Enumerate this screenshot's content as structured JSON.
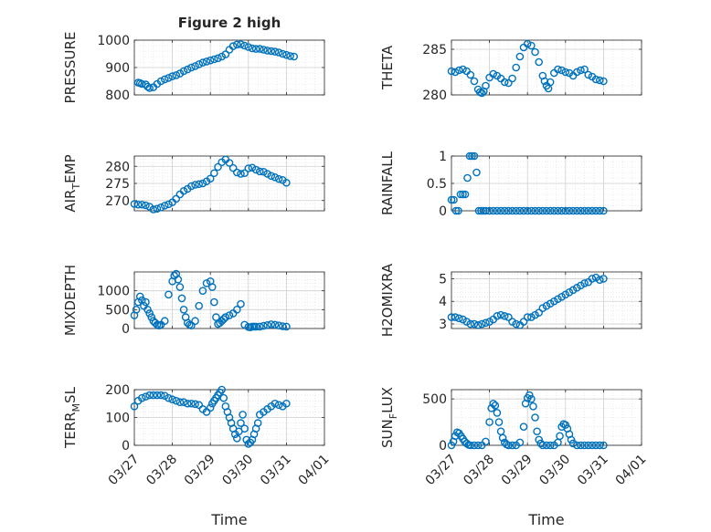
{
  "figure": {
    "title": "Figure 2 high",
    "marker_color": "#0072BD",
    "background": "#ffffff",
    "grid_color": "#dcdcdc",
    "axis_color": "#262626"
  },
  "chart_data": [
    {
      "type": "scatter",
      "ylabel": "PRESSURE",
      "xlabel": "",
      "ylim": [
        800,
        1000
      ],
      "yticks": [
        "800",
        "900",
        "1000"
      ],
      "xticklabels": [],
      "grid": true,
      "minor_grid": true,
      "x": [
        0.1,
        0.15,
        0.2,
        0.3,
        0.35,
        0.4,
        0.5,
        0.6,
        0.7,
        0.8,
        0.9,
        1.0,
        1.1,
        1.2,
        1.3,
        1.4,
        1.5,
        1.6,
        1.7,
        1.8,
        1.9,
        2.0,
        2.1,
        2.2,
        2.3,
        2.4,
        2.5,
        2.6,
        2.7,
        2.8,
        2.9,
        3.0,
        3.1,
        3.2,
        3.3,
        3.4,
        3.5,
        3.6,
        3.7,
        3.8,
        3.9,
        4.0,
        4.1,
        4.2
      ],
      "y": [
        845,
        843,
        840,
        838,
        830,
        825,
        828,
        840,
        850,
        857,
        862,
        868,
        872,
        878,
        887,
        893,
        900,
        905,
        912,
        918,
        922,
        926,
        930,
        934,
        940,
        948,
        965,
        978,
        984,
        985,
        980,
        975,
        970,
        968,
        968,
        965,
        962,
        960,
        958,
        955,
        950,
        946,
        942,
        940
      ]
    },
    {
      "type": "scatter",
      "ylabel": "THETA",
      "xlabel": "",
      "ylim": [
        280,
        286
      ],
      "yticks": [
        "280",
        "285"
      ],
      "xticklabels": [],
      "grid": true,
      "minor_grid": true,
      "x": [
        0.0,
        0.1,
        0.2,
        0.3,
        0.4,
        0.5,
        0.6,
        0.7,
        0.75,
        0.8,
        0.85,
        0.9,
        1.0,
        1.1,
        1.2,
        1.3,
        1.4,
        1.5,
        1.6,
        1.7,
        1.8,
        1.9,
        2.0,
        2.1,
        2.2,
        2.3,
        2.4,
        2.45,
        2.5,
        2.55,
        2.6,
        2.7,
        2.8,
        2.9,
        3.0,
        3.1,
        3.2,
        3.3,
        3.4,
        3.5,
        3.6,
        3.7,
        3.8,
        3.9,
        4.0
      ],
      "y": [
        282.6,
        282.5,
        282.7,
        282.8,
        282.6,
        282.2,
        281.5,
        280.6,
        280.3,
        280.2,
        280.4,
        281.0,
        281.9,
        282.3,
        282.1,
        281.8,
        281.4,
        281.3,
        281.8,
        283.0,
        284.2,
        285.2,
        285.6,
        285.4,
        284.7,
        283.6,
        282.1,
        281.5,
        281.0,
        280.7,
        281.4,
        282.4,
        282.8,
        282.7,
        282.5,
        282.4,
        282.1,
        282.5,
        282.7,
        282.8,
        282.2,
        282.0,
        281.7,
        281.6,
        281.5
      ]
    },
    {
      "type": "scatter",
      "ylabel": "AIR_TEMP",
      "xlabel": "",
      "ylim": [
        267,
        283
      ],
      "yticks": [
        "270",
        "275",
        "280"
      ],
      "xticklabels": [],
      "grid": true,
      "minor_grid": true,
      "x": [
        0.0,
        0.1,
        0.2,
        0.3,
        0.4,
        0.5,
        0.6,
        0.7,
        0.8,
        0.9,
        1.0,
        1.1,
        1.2,
        1.3,
        1.4,
        1.5,
        1.6,
        1.7,
        1.8,
        1.9,
        2.0,
        2.1,
        2.2,
        2.3,
        2.4,
        2.5,
        2.6,
        2.7,
        2.8,
        2.9,
        3.0,
        3.1,
        3.2,
        3.3,
        3.4,
        3.5,
        3.6,
        3.7,
        3.8,
        3.9,
        4.0
      ],
      "y": [
        269.0,
        268.8,
        268.8,
        268.6,
        268.2,
        267.4,
        267.6,
        268.0,
        268.5,
        268.9,
        269.5,
        270.5,
        271.8,
        272.8,
        273.4,
        274.2,
        274.6,
        274.8,
        275.0,
        275.6,
        276.4,
        278.0,
        279.8,
        281.2,
        282.0,
        281.0,
        279.5,
        278.2,
        277.8,
        278.0,
        279.4,
        279.6,
        279.0,
        278.5,
        278.4,
        277.8,
        277.2,
        276.8,
        276.3,
        276.0,
        275.2
      ]
    },
    {
      "type": "scatter",
      "ylabel": "RAINFALL",
      "xlabel": "",
      "ylim": [
        0,
        1
      ],
      "yticks": [
        "0",
        "0.5",
        "1"
      ],
      "xticklabels": [],
      "grid": true,
      "minor_grid": true,
      "x": [
        0.0,
        0.06,
        0.12,
        0.18,
        0.24,
        0.3,
        0.36,
        0.42,
        0.48,
        0.54,
        0.6,
        0.66,
        0.72,
        0.78,
        0.84,
        0.9,
        1.0,
        1.1,
        1.2,
        1.3,
        1.4,
        1.5,
        1.6,
        1.7,
        1.8,
        1.9,
        2.0,
        2.1,
        2.2,
        2.3,
        2.4,
        2.5,
        2.6,
        2.7,
        2.8,
        2.9,
        3.0,
        3.1,
        3.2,
        3.3,
        3.4,
        3.5,
        3.6,
        3.7,
        3.8,
        3.9,
        4.0
      ],
      "y": [
        0.2,
        0.2,
        0.0,
        0.0,
        0.3,
        0.3,
        0.3,
        0.6,
        1.0,
        1.0,
        1.0,
        0.7,
        0.0,
        0.0,
        0.0,
        0.0,
        0.0,
        0.0,
        0.0,
        0.0,
        0.0,
        0.0,
        0.0,
        0.0,
        0.0,
        0.0,
        0.0,
        0.0,
        0.0,
        0.0,
        0.0,
        0.0,
        0.0,
        0.0,
        0.0,
        0.0,
        0.0,
        0.0,
        0.0,
        0.0,
        0.0,
        0.0,
        0.0,
        0.0,
        0.0,
        0.0,
        0.0
      ]
    },
    {
      "type": "scatter",
      "ylabel": "MIXDEPTH",
      "xlabel": "",
      "ylim": [
        0,
        1500
      ],
      "yticks": [
        "0",
        "500",
        "1000"
      ],
      "xticklabels": [],
      "grid": true,
      "minor_grid": true,
      "x": [
        0.0,
        0.05,
        0.1,
        0.15,
        0.2,
        0.25,
        0.3,
        0.35,
        0.4,
        0.45,
        0.5,
        0.55,
        0.6,
        0.65,
        0.7,
        0.8,
        0.9,
        1.0,
        1.05,
        1.1,
        1.15,
        1.2,
        1.25,
        1.3,
        1.35,
        1.4,
        1.45,
        1.5,
        1.6,
        1.7,
        1.8,
        1.9,
        2.0,
        2.05,
        2.1,
        2.15,
        2.2,
        2.25,
        2.3,
        2.35,
        2.4,
        2.5,
        2.6,
        2.7,
        2.8,
        2.9,
        3.0,
        3.05,
        3.1,
        3.15,
        3.2,
        3.3,
        3.4,
        3.5,
        3.6,
        3.7,
        3.8,
        3.9,
        4.0
      ],
      "y": [
        350,
        500,
        700,
        850,
        750,
        600,
        700,
        500,
        400,
        300,
        200,
        150,
        100,
        80,
        100,
        200,
        900,
        1250,
        1400,
        1450,
        1300,
        1100,
        800,
        500,
        300,
        150,
        100,
        80,
        200,
        600,
        1000,
        1200,
        1250,
        1100,
        700,
        300,
        120,
        150,
        200,
        250,
        300,
        350,
        400,
        500,
        650,
        100,
        40,
        30,
        50,
        50,
        50,
        50,
        70,
        90,
        110,
        100,
        80,
        60,
        50
      ]
    },
    {
      "type": "scatter",
      "ylabel": "H2OMIXRA",
      "xlabel": "",
      "ylim": [
        2.8,
        5.3
      ],
      "yticks": [
        "3",
        "4",
        "5"
      ],
      "xticklabels": [],
      "grid": true,
      "minor_grid": true,
      "x": [
        0.0,
        0.1,
        0.2,
        0.3,
        0.4,
        0.5,
        0.6,
        0.7,
        0.8,
        0.9,
        1.0,
        1.1,
        1.2,
        1.3,
        1.4,
        1.5,
        1.6,
        1.7,
        1.8,
        1.9,
        2.0,
        2.1,
        2.2,
        2.3,
        2.4,
        2.5,
        2.6,
        2.7,
        2.8,
        2.9,
        3.0,
        3.1,
        3.2,
        3.3,
        3.4,
        3.5,
        3.6,
        3.7,
        3.8,
        3.9,
        4.0
      ],
      "y": [
        3.3,
        3.3,
        3.25,
        3.2,
        3.1,
        3.0,
        3.0,
        2.95,
        3.0,
        3.05,
        3.1,
        3.2,
        3.35,
        3.4,
        3.35,
        3.3,
        3.1,
        3.0,
        2.95,
        3.1,
        3.3,
        3.3,
        3.4,
        3.5,
        3.7,
        3.8,
        3.9,
        4.0,
        4.1,
        4.2,
        4.3,
        4.4,
        4.5,
        4.6,
        4.7,
        4.8,
        4.85,
        5.0,
        5.05,
        4.95,
        5.0
      ]
    },
    {
      "type": "scatter",
      "ylabel": "TERR_MSL",
      "xlabel": "Time",
      "ylim": [
        0,
        200
      ],
      "yticks": [
        "0",
        "100",
        "200"
      ],
      "xticklabels": [
        "03/27",
        "03/28",
        "03/29",
        "03/30",
        "03/31",
        "04/01"
      ],
      "grid": true,
      "minor_grid": true,
      "x": [
        0.0,
        0.1,
        0.2,
        0.3,
        0.4,
        0.5,
        0.6,
        0.7,
        0.8,
        0.9,
        1.0,
        1.1,
        1.2,
        1.3,
        1.4,
        1.5,
        1.6,
        1.7,
        1.8,
        1.9,
        2.0,
        2.05,
        2.1,
        2.15,
        2.2,
        2.25,
        2.3,
        2.35,
        2.4,
        2.45,
        2.5,
        2.55,
        2.6,
        2.65,
        2.7,
        2.75,
        2.8,
        2.85,
        2.9,
        2.95,
        3.0,
        3.05,
        3.1,
        3.15,
        3.2,
        3.25,
        3.3,
        3.4,
        3.5,
        3.6,
        3.7,
        3.8,
        3.9,
        4.0
      ],
      "y": [
        140,
        160,
        170,
        175,
        180,
        180,
        180,
        180,
        178,
        170,
        165,
        160,
        155,
        155,
        150,
        150,
        148,
        145,
        130,
        120,
        135,
        150,
        160,
        170,
        180,
        190,
        200,
        170,
        140,
        120,
        100,
        80,
        60,
        40,
        25,
        50,
        80,
        110,
        60,
        20,
        5,
        10,
        20,
        40,
        60,
        80,
        110,
        120,
        130,
        140,
        150,
        145,
        140,
        150
      ]
    },
    {
      "type": "scatter",
      "ylabel": "SUN_FLUX",
      "xlabel": "Time",
      "ylim": [
        0,
        600
      ],
      "yticks": [
        "0",
        "500"
      ],
      "xticklabels": [
        "03/27",
        "03/28",
        "03/29",
        "03/30",
        "03/31",
        "04/01"
      ],
      "grid": true,
      "minor_grid": true,
      "x": [
        0.0,
        0.05,
        0.1,
        0.15,
        0.2,
        0.25,
        0.3,
        0.35,
        0.4,
        0.45,
        0.5,
        0.6,
        0.7,
        0.8,
        0.9,
        1.0,
        1.05,
        1.1,
        1.15,
        1.2,
        1.25,
        1.3,
        1.35,
        1.4,
        1.45,
        1.5,
        1.6,
        1.7,
        1.8,
        1.9,
        1.95,
        2.0,
        2.05,
        2.1,
        2.15,
        2.2,
        2.25,
        2.3,
        2.35,
        2.4,
        2.5,
        2.6,
        2.7,
        2.8,
        2.85,
        2.9,
        2.95,
        3.0,
        3.05,
        3.1,
        3.15,
        3.2,
        3.3,
        3.4,
        3.5,
        3.6,
        3.7,
        3.8,
        3.9,
        4.0
      ],
      "y": [
        0,
        40,
        100,
        140,
        130,
        100,
        70,
        40,
        20,
        5,
        0,
        0,
        0,
        0,
        40,
        250,
        400,
        450,
        430,
        350,
        250,
        150,
        80,
        30,
        10,
        0,
        0,
        0,
        30,
        200,
        450,
        510,
        540,
        500,
        420,
        300,
        150,
        60,
        20,
        0,
        0,
        0,
        0,
        30,
        100,
        200,
        230,
        220,
        180,
        120,
        60,
        20,
        0,
        0,
        0,
        0,
        0,
        0,
        0,
        0
      ]
    }
  ]
}
